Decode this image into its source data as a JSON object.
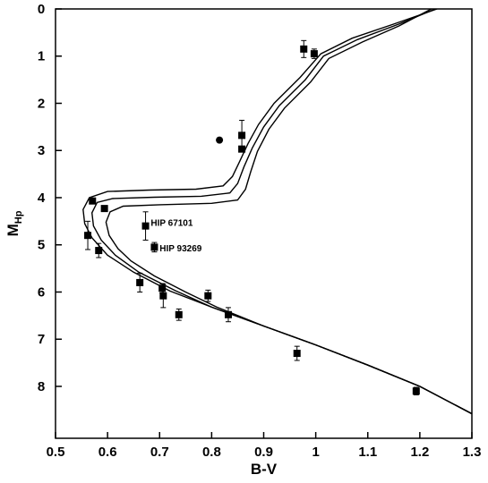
{
  "chart_data": {
    "type": "scatter",
    "xlabel": "B-V",
    "ylabel_main": "M",
    "ylabel_sub": "Hp",
    "xlim": [
      0.5,
      1.3
    ],
    "ylim": [
      9.1,
      0
    ],
    "y_inverted": true,
    "grid": false,
    "x_ticks": [
      {
        "value": 0.5,
        "label": "0.5"
      },
      {
        "value": 0.6,
        "label": "0.6"
      },
      {
        "value": 0.7,
        "label": "0.7"
      },
      {
        "value": 0.8,
        "label": "0.8"
      },
      {
        "value": 0.9,
        "label": "0.9"
      },
      {
        "value": 1.0,
        "label": "1"
      },
      {
        "value": 1.1,
        "label": "1.1"
      },
      {
        "value": 1.2,
        "label": "1.2"
      },
      {
        "value": 1.3,
        "label": "1.3"
      }
    ],
    "y_ticks": [
      {
        "value": 0,
        "label": "0"
      },
      {
        "value": 1,
        "label": "1"
      },
      {
        "value": 2,
        "label": "2"
      },
      {
        "value": 3,
        "label": "3"
      },
      {
        "value": 4,
        "label": "4"
      },
      {
        "value": 5,
        "label": "5"
      },
      {
        "value": 6,
        "label": "6"
      },
      {
        "value": 7,
        "label": "7"
      },
      {
        "value": 8,
        "label": "8"
      }
    ],
    "points": [
      {
        "x": 0.977,
        "y": 0.85,
        "err": 0.18,
        "marker": "square"
      },
      {
        "x": 0.997,
        "y": 0.95,
        "err": 0.1,
        "marker": "square"
      },
      {
        "x": 0.815,
        "y": 2.78,
        "err": 0,
        "marker": "circle"
      },
      {
        "x": 0.858,
        "y": 2.68,
        "err": 0.32,
        "marker": "square"
      },
      {
        "x": 0.858,
        "y": 2.97,
        "err": 0,
        "marker": "square"
      },
      {
        "x": 0.571,
        "y": 4.07,
        "err": 0.05,
        "marker": "square"
      },
      {
        "x": 0.594,
        "y": 4.23,
        "err": 0,
        "marker": "square"
      },
      {
        "x": 0.562,
        "y": 4.8,
        "err": 0.3,
        "marker": "square"
      },
      {
        "x": 0.583,
        "y": 5.12,
        "err": 0.15,
        "marker": "square"
      },
      {
        "x": 0.673,
        "y": 4.6,
        "err": 0.3,
        "marker": "square"
      },
      {
        "x": 0.69,
        "y": 5.05,
        "err": 0.1,
        "marker": "square"
      },
      {
        "x": 0.662,
        "y": 5.8,
        "err": 0.2,
        "marker": "square"
      },
      {
        "x": 0.705,
        "y": 5.92,
        "err": 0.1,
        "marker": "square"
      },
      {
        "x": 0.707,
        "y": 6.08,
        "err": 0.25,
        "marker": "square"
      },
      {
        "x": 0.737,
        "y": 6.48,
        "err": 0.12,
        "marker": "square"
      },
      {
        "x": 0.793,
        "y": 6.08,
        "err": 0.12,
        "marker": "square"
      },
      {
        "x": 0.832,
        "y": 6.48,
        "err": 0.15,
        "marker": "square"
      },
      {
        "x": 0.964,
        "y": 7.3,
        "err": 0.15,
        "marker": "square"
      },
      {
        "x": 1.193,
        "y": 8.1,
        "err": 0.08,
        "marker": "square"
      }
    ],
    "annotations": [
      {
        "text": "HIP 67101",
        "x": 0.683,
        "y": 4.52
      },
      {
        "text": "HIP 93269",
        "x": 0.7,
        "y": 5.06
      }
    ],
    "isochrones": [
      {
        "points": [
          [
            1.233,
            0.0
          ],
          [
            1.15,
            0.32
          ],
          [
            1.07,
            0.62
          ],
          [
            1.01,
            0.95
          ],
          [
            0.97,
            1.45
          ],
          [
            0.92,
            2.0
          ],
          [
            0.89,
            2.45
          ],
          [
            0.87,
            2.85
          ],
          [
            0.853,
            3.25
          ],
          [
            0.84,
            3.55
          ],
          [
            0.822,
            3.75
          ],
          [
            0.77,
            3.82
          ],
          [
            0.68,
            3.84
          ],
          [
            0.6,
            3.87
          ],
          [
            0.565,
            4.0
          ],
          [
            0.553,
            4.25
          ],
          [
            0.556,
            4.55
          ],
          [
            0.57,
            4.85
          ],
          [
            0.6,
            5.22
          ],
          [
            0.65,
            5.58
          ],
          [
            0.72,
            5.98
          ],
          [
            0.8,
            6.32
          ],
          [
            0.9,
            6.72
          ],
          [
            1.0,
            7.12
          ],
          [
            1.1,
            7.55
          ],
          [
            1.2,
            8.0
          ],
          [
            1.3,
            8.58
          ]
        ]
      },
      {
        "points": [
          [
            1.23,
            0.0
          ],
          [
            1.16,
            0.32
          ],
          [
            1.08,
            0.65
          ],
          [
            1.015,
            1.0
          ],
          [
            0.98,
            1.5
          ],
          [
            0.93,
            2.05
          ],
          [
            0.9,
            2.5
          ],
          [
            0.878,
            2.95
          ],
          [
            0.862,
            3.35
          ],
          [
            0.85,
            3.7
          ],
          [
            0.835,
            3.9
          ],
          [
            0.78,
            3.97
          ],
          [
            0.69,
            3.99
          ],
          [
            0.61,
            4.02
          ],
          [
            0.58,
            4.1
          ],
          [
            0.57,
            4.32
          ],
          [
            0.573,
            4.6
          ],
          [
            0.588,
            4.9
          ],
          [
            0.615,
            5.22
          ],
          [
            0.66,
            5.58
          ],
          [
            0.73,
            5.97
          ],
          [
            0.8,
            6.32
          ],
          [
            0.9,
            6.72
          ],
          [
            1.0,
            7.12
          ],
          [
            1.1,
            7.55
          ],
          [
            1.2,
            8.0
          ],
          [
            1.3,
            8.58
          ]
        ]
      },
      {
        "points": [
          [
            1.222,
            0.0
          ],
          [
            1.16,
            0.36
          ],
          [
            1.09,
            0.7
          ],
          [
            1.025,
            1.05
          ],
          [
            0.99,
            1.55
          ],
          [
            0.94,
            2.1
          ],
          [
            0.91,
            2.55
          ],
          [
            0.888,
            3.02
          ],
          [
            0.875,
            3.45
          ],
          [
            0.865,
            3.82
          ],
          [
            0.85,
            4.05
          ],
          [
            0.8,
            4.12
          ],
          [
            0.7,
            4.15
          ],
          [
            0.63,
            4.18
          ],
          [
            0.605,
            4.3
          ],
          [
            0.597,
            4.52
          ],
          [
            0.603,
            4.8
          ],
          [
            0.62,
            5.08
          ],
          [
            0.645,
            5.34
          ],
          [
            0.69,
            5.66
          ],
          [
            0.75,
            6.0
          ],
          [
            0.81,
            6.32
          ],
          [
            0.9,
            6.72
          ],
          [
            1.0,
            7.12
          ],
          [
            1.1,
            7.55
          ],
          [
            1.2,
            8.0
          ],
          [
            1.3,
            8.58
          ]
        ]
      }
    ]
  }
}
